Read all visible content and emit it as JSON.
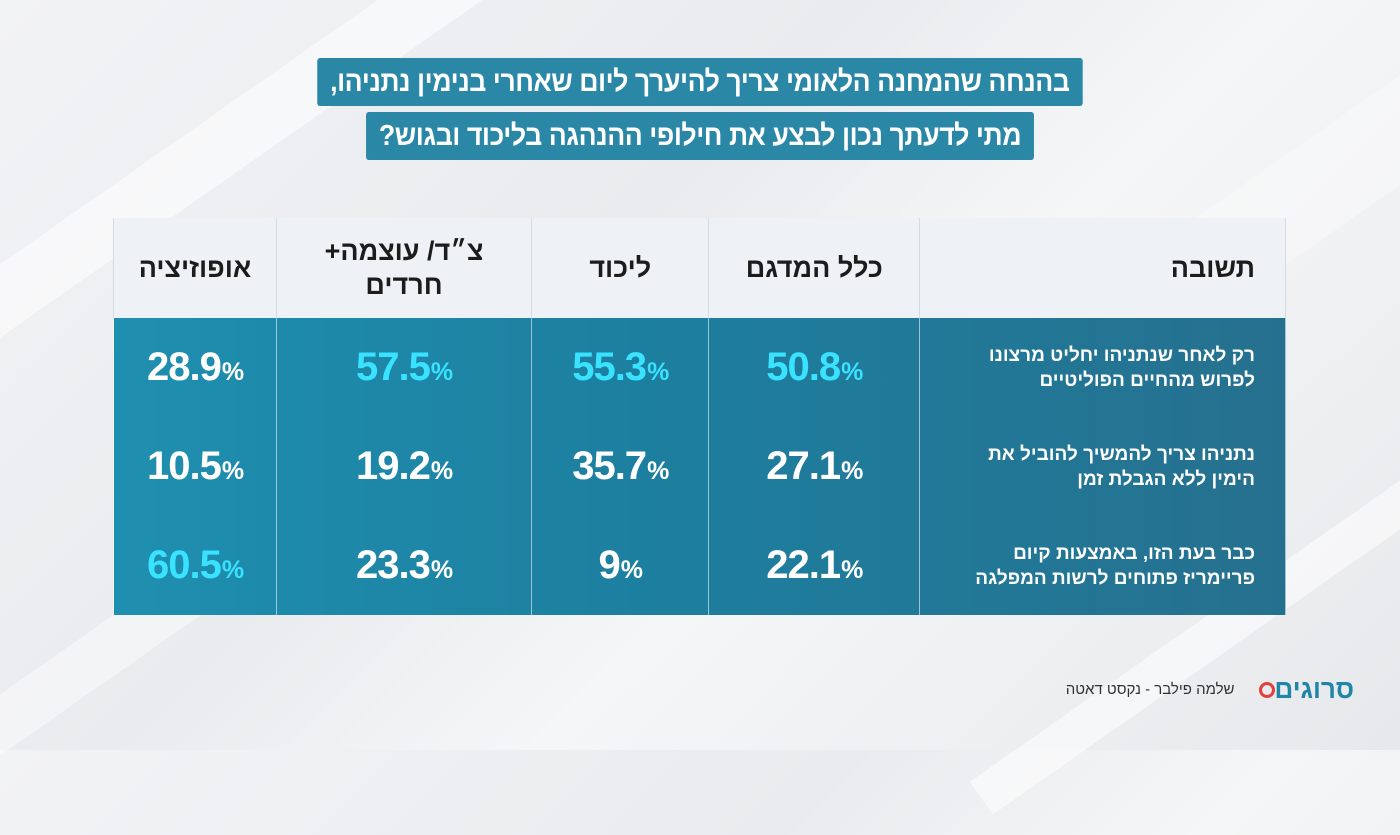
{
  "title": {
    "line1": "בהנחה שהמחנה הלאומי צריך להיערך ליום שאחרי בנימין נתניהו,",
    "line2": "מתי לדעתך נכון לבצע את חילופי ההנהגה בליכוד ובגוש?"
  },
  "chart_data": {
    "type": "table",
    "columns": [
      "תשובה",
      "כלל המדגם",
      "ליכוד",
      "צ\"ד/ עוצמה+ חרדים",
      "אופוזיציה"
    ],
    "rows": [
      {
        "answer": "רק לאחר שנתניהו יחליט מרצונו לפרוש מהחיים הפוליטיים",
        "values": [
          "50.8",
          "55.3",
          "57.5",
          "28.9"
        ],
        "highlight": [
          true,
          true,
          true,
          false
        ]
      },
      {
        "answer": "נתניהו צריך להמשיך להוביל את הימין ללא הגבלת זמן",
        "values": [
          "27.1",
          "35.7",
          "19.2",
          "10.5"
        ],
        "highlight": [
          false,
          false,
          false,
          false
        ]
      },
      {
        "answer": "כבר בעת הזו, באמצעות קיום פריימריז פתוחים לרשות המפלגה",
        "values": [
          "22.1",
          "9",
          "23.3",
          "60.5"
        ],
        "highlight": [
          false,
          false,
          false,
          true
        ]
      }
    ],
    "unit": "%",
    "highlight_color": "#39e2ff"
  },
  "header": {
    "answer": "תשובה",
    "total": "כלל המדגם",
    "likud": "ליכוד",
    "right_line1": "צ״ד/ עוצמה+",
    "right_line2": "חרדים",
    "opposition": "אופוזיציה"
  },
  "footer": {
    "logo_text": "סרוגים",
    "credit": "שלמה פילבר - נקסט דאטה"
  },
  "colors": {
    "title_bg": "#2a87a6",
    "table_body": "#1f8fb0",
    "header_bg": "#eef2f6",
    "logo": "#1f86a7",
    "logo_accent": "#e4413b"
  }
}
